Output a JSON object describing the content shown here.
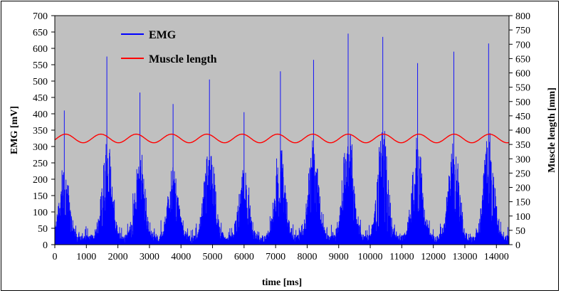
{
  "chart_data": {
    "type": "line",
    "title": "",
    "xlabel": "time [ms]",
    "ylabel": "EMG [mV]",
    "y2label": "Muscle length [mm]",
    "xlim": [
      0,
      14400
    ],
    "ylim": [
      0,
      700
    ],
    "y2lim": [
      0,
      800
    ],
    "xticks": [
      0,
      1000,
      2000,
      3000,
      4000,
      5000,
      6000,
      7000,
      8000,
      9000,
      10000,
      11000,
      12000,
      13000,
      14000
    ],
    "yticks": [
      0,
      50,
      100,
      150,
      200,
      250,
      300,
      350,
      400,
      450,
      500,
      550,
      600,
      650,
      700
    ],
    "y2ticks": [
      0,
      50,
      100,
      150,
      200,
      250,
      300,
      350,
      400,
      450,
      500,
      550,
      600,
      650,
      700,
      750,
      800
    ],
    "plot_background": "#c0c0c0",
    "grid": false,
    "legend_position": "top-left",
    "series": [
      {
        "name": "EMG",
        "color": "#0000ff",
        "axis": "left",
        "burst_centers_ms": [
          300,
          1650,
          2700,
          3750,
          4900,
          6000,
          7150,
          8200,
          9300,
          10400,
          11500,
          12650,
          13750
        ],
        "burst_peaks_mV": [
          410,
          575,
          465,
          430,
          505,
          405,
          530,
          565,
          645,
          635,
          555,
          590,
          615
        ],
        "baseline_max_mV": 80
      },
      {
        "name": "Muscle length",
        "color": "#ff0000",
        "axis": "right",
        "mean_mm": 371,
        "amplitude_mm": 15,
        "period_ms": 1120,
        "first_peak_ms": 340
      }
    ]
  }
}
